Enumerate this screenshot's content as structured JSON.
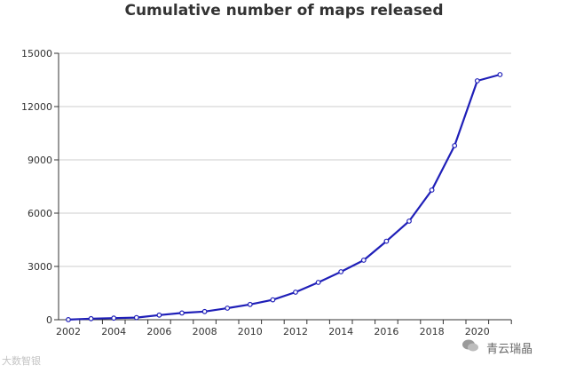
{
  "chart_data": {
    "type": "line",
    "title": "Cumulative number of maps released",
    "xlabel": "",
    "ylabel": "",
    "x": [
      2002,
      2003,
      2004,
      2005,
      2006,
      2007,
      2008,
      2009,
      2010,
      2011,
      2012,
      2013,
      2014,
      2015,
      2016,
      2017,
      2018,
      2019,
      2020,
      2021
    ],
    "values": [
      5,
      60,
      90,
      120,
      260,
      380,
      460,
      650,
      860,
      1120,
      1550,
      2100,
      2700,
      3350,
      4420,
      5550,
      7300,
      9800,
      13450,
      13800
    ],
    "ylim": [
      0,
      15000
    ],
    "yticks": [
      0,
      3000,
      6000,
      9000,
      12000,
      15000
    ],
    "xticks": [
      "2002",
      "2004",
      "2006",
      "2008",
      "2010",
      "2012",
      "2014",
      "2016",
      "2018",
      "2020"
    ],
    "grid": "horizontal",
    "line_color": "#1f1fb8"
  },
  "watermarks": {
    "left": "大数智银",
    "right": "青云瑞晶"
  }
}
